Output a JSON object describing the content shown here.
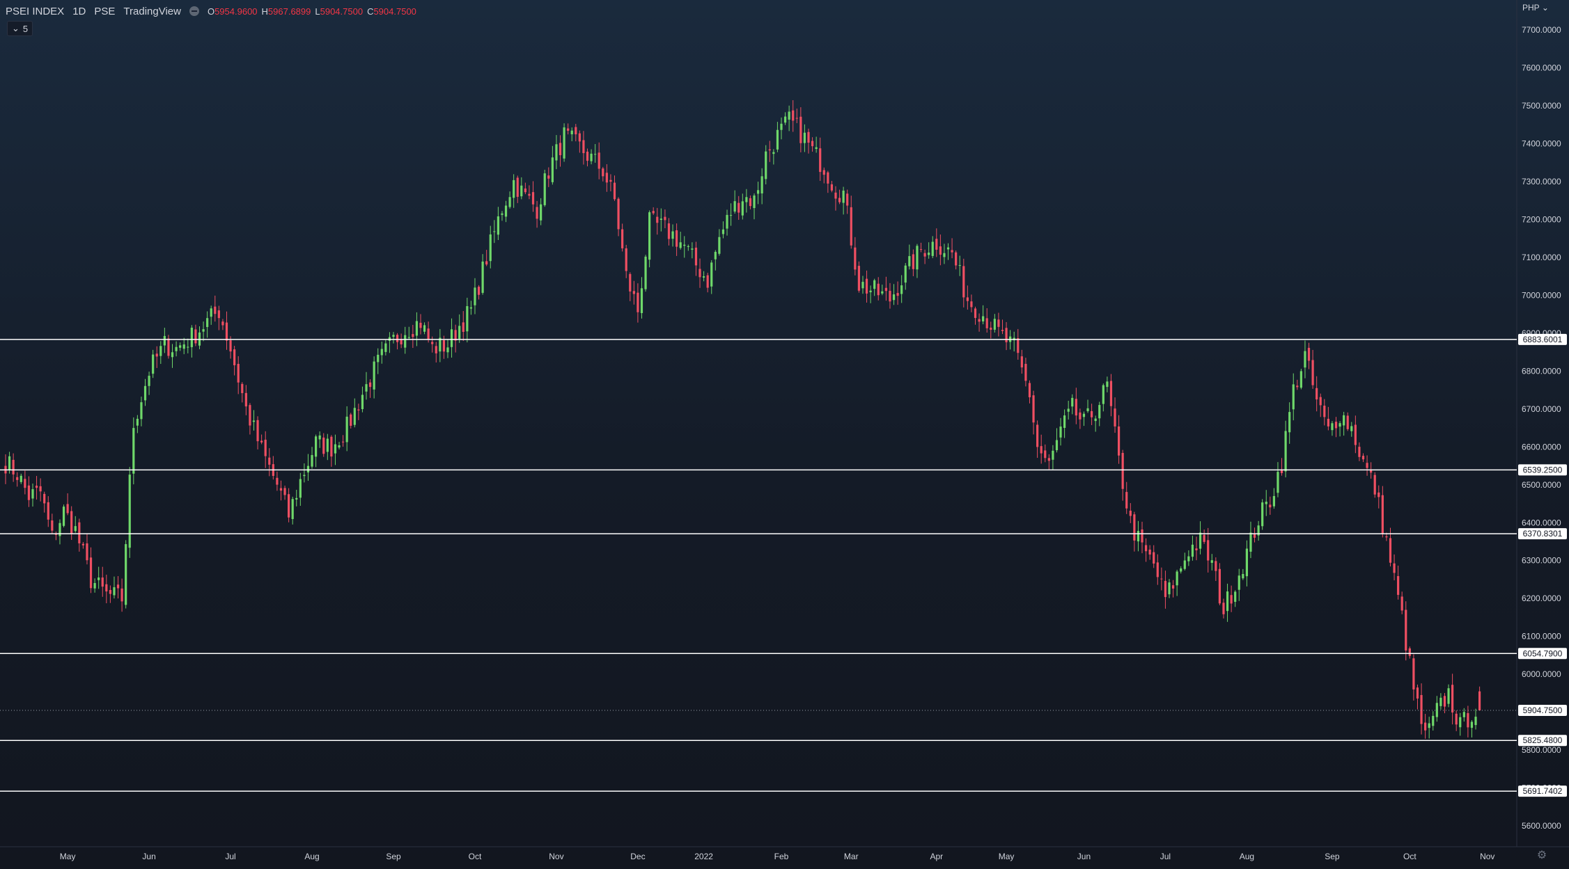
{
  "header": {
    "symbol": "PSEI INDEX",
    "interval": "1D",
    "exchange": "PSE",
    "source": "TradingView",
    "ohlc": [
      {
        "key": "O",
        "value": "5954.9600"
      },
      {
        "key": "H",
        "value": "5967.6899"
      },
      {
        "key": "L",
        "value": "5904.7500"
      },
      {
        "key": "C",
        "value": "5904.7500"
      }
    ],
    "indicator_toggle": "5",
    "currency": "PHP"
  },
  "colors": {
    "up": "#6fd86a",
    "down": "#ef4f62",
    "line": "#ffffff",
    "axis_text": "#d1d4dc"
  },
  "chart_data": {
    "type": "candlestick",
    "title": "PSEI INDEX",
    "ylim": [
      5545,
      7770
    ],
    "y_ticks": [
      5600,
      5700,
      5800,
      5900,
      6000,
      6100,
      6200,
      6300,
      6400,
      6500,
      6600,
      6700,
      6800,
      6900,
      7000,
      7100,
      7200,
      7300,
      7400,
      7500,
      7600,
      7700
    ],
    "y_tick_labels": [
      "5600.0000",
      "5700.0000",
      "5800.0000",
      "5900.0000",
      "6000.0000",
      "6100.0000",
      "6200.0000",
      "6300.0000",
      "6400.0000",
      "6500.0000",
      "6600.0000",
      "6700.0000",
      "6800.0000",
      "6900.0000",
      "7000.0000",
      "7100.0000",
      "7200.0000",
      "7300.0000",
      "7400.0000",
      "7500.0000",
      "7600.0000",
      "7700.0000"
    ],
    "x_ticks": [
      "May",
      "Jun",
      "Jul",
      "Aug",
      "Sep",
      "Oct",
      "Nov",
      "Dec",
      "2022",
      "Feb",
      "Mar",
      "Apr",
      "May",
      "Jun",
      "Jul",
      "Aug",
      "Sep",
      "Oct",
      "Nov"
    ],
    "x_tick_bars": [
      16,
      37,
      58,
      79,
      100,
      121,
      142,
      163,
      180,
      200,
      218,
      240,
      258,
      278,
      299,
      320,
      342,
      362,
      382
    ],
    "horizontal_lines": [
      {
        "value": 6883.6001,
        "label": "6883.6001"
      },
      {
        "value": 6539.25,
        "label": "6539.2500"
      },
      {
        "value": 6370.8301,
        "label": "6370.8301"
      },
      {
        "value": 6054.79,
        "label": "6054.7900"
      },
      {
        "value": 5825.48,
        "label": "5825.4800"
      },
      {
        "value": 5691.7402,
        "label": "5691.7402"
      }
    ],
    "last_price": {
      "value": 5904.75,
      "label": "5904.7500"
    },
    "close_path": [
      [
        0,
        6560
      ],
      [
        3,
        6530
      ],
      [
        6,
        6470
      ],
      [
        9,
        6480
      ],
      [
        12,
        6360
      ],
      [
        15,
        6430
      ],
      [
        18,
        6380
      ],
      [
        22,
        6250
      ],
      [
        26,
        6210
      ],
      [
        30,
        6200
      ],
      [
        33,
        6660
      ],
      [
        37,
        6800
      ],
      [
        41,
        6870
      ],
      [
        44,
        6860
      ],
      [
        48,
        6890
      ],
      [
        52,
        6930
      ],
      [
        55,
        6960
      ],
      [
        58,
        6860
      ],
      [
        62,
        6700
      ],
      [
        66,
        6590
      ],
      [
        70,
        6500
      ],
      [
        73,
        6420
      ],
      [
        76,
        6510
      ],
      [
        80,
        6610
      ],
      [
        84,
        6600
      ],
      [
        88,
        6650
      ],
      [
        92,
        6740
      ],
      [
        96,
        6820
      ],
      [
        100,
        6880
      ],
      [
        103,
        6910
      ],
      [
        107,
        6930
      ],
      [
        110,
        6860
      ],
      [
        114,
        6870
      ],
      [
        117,
        6920
      ],
      [
        120,
        6960
      ],
      [
        124,
        7100
      ],
      [
        128,
        7230
      ],
      [
        131,
        7300
      ],
      [
        134,
        7260
      ],
      [
        137,
        7230
      ],
      [
        140,
        7330
      ],
      [
        144,
        7420
      ],
      [
        148,
        7390
      ],
      [
        151,
        7360
      ],
      [
        154,
        7330
      ],
      [
        157,
        7250
      ],
      [
        160,
        7050
      ],
      [
        163,
        6960
      ],
      [
        166,
        7190
      ],
      [
        169,
        7180
      ],
      [
        172,
        7160
      ],
      [
        175,
        7130
      ],
      [
        178,
        7080
      ],
      [
        181,
        7040
      ],
      [
        184,
        7150
      ],
      [
        187,
        7220
      ],
      [
        190,
        7260
      ],
      [
        193,
        7250
      ],
      [
        196,
        7370
      ],
      [
        199,
        7420
      ],
      [
        202,
        7460
      ],
      [
        205,
        7430
      ],
      [
        208,
        7380
      ],
      [
        211,
        7340
      ],
      [
        214,
        7280
      ],
      [
        216,
        7270
      ],
      [
        220,
        7030
      ],
      [
        224,
        7010
      ],
      [
        228,
        6990
      ],
      [
        232,
        7060
      ],
      [
        236,
        7120
      ],
      [
        240,
        7140
      ],
      [
        244,
        7110
      ],
      [
        248,
        6990
      ],
      [
        252,
        6950
      ],
      [
        256,
        6900
      ],
      [
        260,
        6860
      ],
      [
        264,
        6740
      ],
      [
        266,
        6600
      ],
      [
        269,
        6550
      ],
      [
        272,
        6640
      ],
      [
        275,
        6700
      ],
      [
        278,
        6660
      ],
      [
        281,
        6700
      ],
      [
        284,
        6760
      ],
      [
        287,
        6560
      ],
      [
        290,
        6400
      ],
      [
        293,
        6330
      ],
      [
        296,
        6290
      ],
      [
        299,
        6200
      ],
      [
        302,
        6260
      ],
      [
        305,
        6330
      ],
      [
        308,
        6350
      ],
      [
        311,
        6290
      ],
      [
        314,
        6170
      ],
      [
        317,
        6240
      ],
      [
        320,
        6320
      ],
      [
        323,
        6410
      ],
      [
        326,
        6460
      ],
      [
        329,
        6560
      ],
      [
        332,
        6750
      ],
      [
        335,
        6840
      ],
      [
        338,
        6720
      ],
      [
        341,
        6640
      ],
      [
        344,
        6690
      ],
      [
        347,
        6650
      ],
      [
        350,
        6560
      ],
      [
        353,
        6490
      ],
      [
        356,
        6350
      ],
      [
        360,
        6150
      ],
      [
        363,
        5960
      ],
      [
        366,
        5830
      ],
      [
        369,
        5900
      ],
      [
        372,
        5950
      ],
      [
        375,
        5860
      ],
      [
        378,
        5900
      ],
      [
        380,
        5904.75
      ]
    ],
    "last_bar": {
      "open": 5954.96,
      "high": 5967.6899,
      "low": 5904.75,
      "close": 5904.75
    }
  }
}
